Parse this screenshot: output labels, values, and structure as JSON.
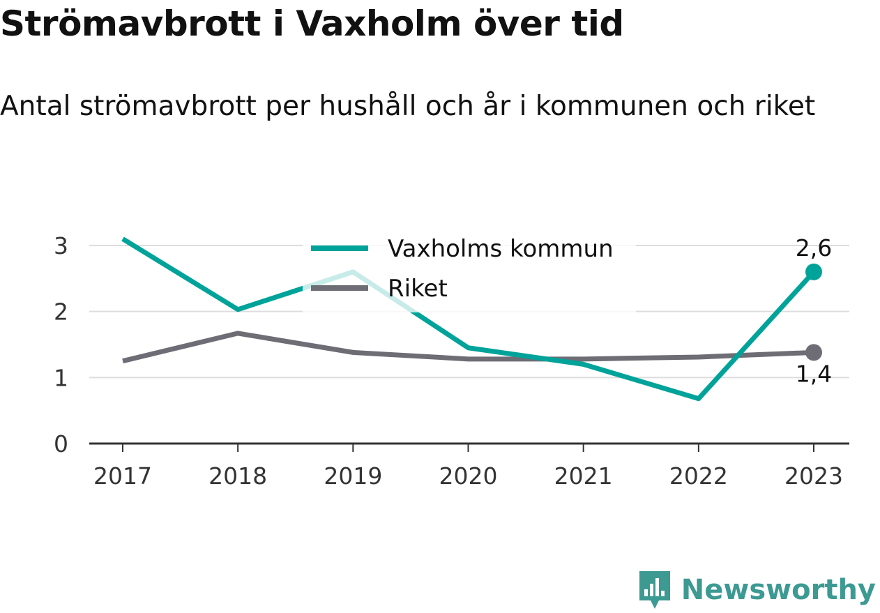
{
  "title": "Strömavbrott i Vaxholm över tid",
  "subtitle": "Antal strömavbrott per hushåll och år i kommunen och riket",
  "brand": {
    "name": "Newsworthy",
    "icon": "newsworthy-logo-icon"
  },
  "colors": {
    "vaxholm": "#00a399",
    "riket": "#6e6d75",
    "grid": "#dddddd",
    "axis": "#333333",
    "brand": "#3c9a93"
  },
  "chart_data": {
    "type": "line",
    "x": [
      "2017",
      "2018",
      "2019",
      "2020",
      "2021",
      "2022",
      "2023"
    ],
    "ylim": [
      0,
      3
    ],
    "yticks": [
      "0",
      "1",
      "2",
      "3"
    ],
    "grid": true,
    "legend_placement": "top-center",
    "series": [
      {
        "name": "Vaxholms kommun",
        "values": [
          3.1,
          2.03,
          2.6,
          1.45,
          1.2,
          0.68,
          2.6
        ],
        "end_label": "2,6"
      },
      {
        "name": "Riket",
        "values": [
          1.25,
          1.67,
          1.38,
          1.28,
          1.28,
          1.31,
          1.38
        ],
        "end_label": "1,4"
      }
    ]
  }
}
